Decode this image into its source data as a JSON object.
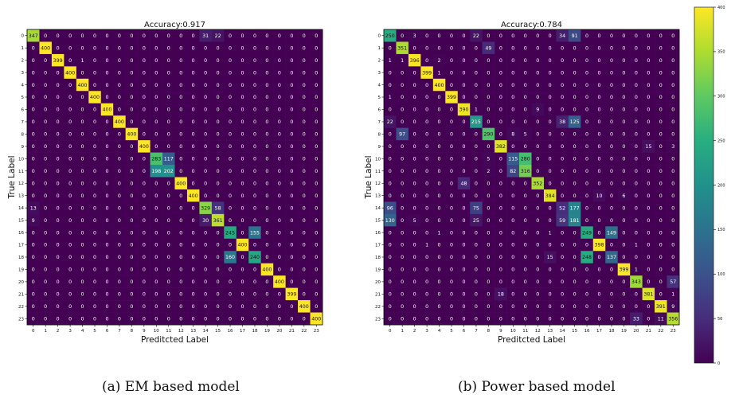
{
  "chart_data": [
    {
      "type": "heatmap",
      "title": "Accuracy:0.917",
      "xlabel": "Preditcted Label",
      "ylabel": "True Label",
      "x": [
        "0",
        "1",
        "2",
        "3",
        "4",
        "5",
        "6",
        "7",
        "8",
        "9",
        "10",
        "11",
        "12",
        "13",
        "14",
        "15",
        "16",
        "17",
        "18",
        "19",
        "20",
        "21",
        "22",
        "23"
      ],
      "y": [
        "0",
        "1",
        "2",
        "3",
        "4",
        "5",
        "6",
        "7",
        "8",
        "9",
        "10",
        "11",
        "12",
        "13",
        "14",
        "15",
        "16",
        "17",
        "18",
        "19",
        "20",
        "21",
        "22",
        "23"
      ],
      "values": [
        [
          347,
          0,
          0,
          0,
          0,
          0,
          0,
          0,
          0,
          0,
          0,
          0,
          0,
          0,
          31,
          22,
          0,
          0,
          0,
          0,
          0,
          0,
          0,
          0
        ],
        [
          0,
          400,
          0,
          0,
          0,
          0,
          0,
          0,
          0,
          0,
          0,
          0,
          0,
          0,
          0,
          0,
          0,
          0,
          0,
          0,
          0,
          0,
          0,
          0
        ],
        [
          0,
          0,
          399,
          0,
          1,
          0,
          0,
          0,
          0,
          0,
          0,
          0,
          0,
          0,
          0,
          0,
          0,
          0,
          0,
          0,
          0,
          0,
          0,
          0
        ],
        [
          0,
          0,
          0,
          400,
          0,
          0,
          0,
          0,
          0,
          0,
          0,
          0,
          0,
          0,
          0,
          0,
          0,
          0,
          0,
          0,
          0,
          0,
          0,
          0
        ],
        [
          0,
          0,
          0,
          0,
          400,
          0,
          0,
          0,
          0,
          0,
          0,
          0,
          0,
          0,
          0,
          0,
          0,
          0,
          0,
          0,
          0,
          0,
          0,
          0
        ],
        [
          0,
          0,
          0,
          0,
          0,
          400,
          0,
          0,
          0,
          0,
          0,
          0,
          0,
          0,
          0,
          0,
          0,
          0,
          0,
          0,
          0,
          0,
          0,
          0
        ],
        [
          0,
          0,
          0,
          0,
          0,
          0,
          400,
          0,
          0,
          0,
          0,
          0,
          0,
          0,
          0,
          0,
          0,
          0,
          0,
          0,
          0,
          0,
          0,
          0
        ],
        [
          0,
          0,
          0,
          0,
          0,
          0,
          0,
          400,
          0,
          0,
          0,
          0,
          0,
          0,
          0,
          0,
          0,
          0,
          0,
          0,
          0,
          0,
          0,
          0
        ],
        [
          0,
          0,
          0,
          0,
          0,
          0,
          0,
          0,
          400,
          0,
          0,
          0,
          0,
          0,
          0,
          0,
          0,
          0,
          0,
          0,
          0,
          0,
          0,
          0
        ],
        [
          0,
          0,
          0,
          0,
          0,
          0,
          0,
          0,
          0,
          400,
          0,
          0,
          0,
          0,
          0,
          0,
          0,
          0,
          0,
          0,
          0,
          0,
          0,
          0
        ],
        [
          0,
          0,
          0,
          0,
          0,
          0,
          0,
          0,
          0,
          0,
          283,
          117,
          0,
          0,
          0,
          0,
          0,
          0,
          0,
          0,
          0,
          0,
          0,
          0
        ],
        [
          0,
          0,
          0,
          0,
          0,
          0,
          0,
          0,
          0,
          0,
          198,
          202,
          0,
          0,
          0,
          0,
          0,
          0,
          0,
          0,
          0,
          0,
          0,
          0
        ],
        [
          0,
          0,
          0,
          0,
          0,
          0,
          0,
          0,
          0,
          0,
          0,
          0,
          400,
          0,
          0,
          0,
          0,
          0,
          0,
          0,
          0,
          0,
          0,
          0
        ],
        [
          0,
          0,
          0,
          0,
          0,
          0,
          0,
          0,
          0,
          0,
          0,
          0,
          0,
          400,
          0,
          0,
          0,
          0,
          0,
          0,
          0,
          0,
          0,
          0
        ],
        [
          13,
          0,
          0,
          0,
          0,
          0,
          0,
          0,
          0,
          0,
          0,
          0,
          0,
          0,
          329,
          58,
          0,
          0,
          0,
          0,
          0,
          0,
          0,
          0
        ],
        [
          9,
          0,
          0,
          0,
          0,
          0,
          0,
          0,
          0,
          0,
          0,
          0,
          0,
          0,
          30,
          361,
          0,
          0,
          0,
          0,
          0,
          0,
          0,
          0
        ],
        [
          0,
          0,
          0,
          0,
          0,
          0,
          0,
          0,
          0,
          0,
          0,
          0,
          0,
          0,
          0,
          0,
          245,
          0,
          155,
          0,
          0,
          0,
          0,
          0
        ],
        [
          0,
          0,
          0,
          0,
          0,
          0,
          0,
          0,
          0,
          0,
          0,
          0,
          0,
          0,
          0,
          0,
          0,
          400,
          0,
          0,
          0,
          0,
          0,
          0
        ],
        [
          0,
          0,
          0,
          0,
          0,
          0,
          0,
          0,
          0,
          0,
          0,
          0,
          0,
          0,
          0,
          0,
          160,
          0,
          240,
          0,
          0,
          0,
          0,
          0
        ],
        [
          0,
          0,
          0,
          0,
          0,
          0,
          0,
          0,
          0,
          0,
          0,
          0,
          0,
          0,
          0,
          0,
          0,
          0,
          0,
          400,
          0,
          0,
          0,
          0
        ],
        [
          0,
          0,
          0,
          0,
          0,
          0,
          0,
          0,
          0,
          0,
          0,
          0,
          0,
          0,
          0,
          0,
          0,
          0,
          0,
          0,
          400,
          0,
          0,
          0
        ],
        [
          0,
          0,
          0,
          0,
          0,
          0,
          0,
          0,
          0,
          0,
          0,
          0,
          0,
          0,
          0,
          0,
          0,
          0,
          0,
          0,
          0,
          399,
          0,
          0
        ],
        [
          0,
          0,
          0,
          0,
          0,
          0,
          0,
          0,
          0,
          0,
          0,
          0,
          0,
          0,
          0,
          0,
          0,
          0,
          0,
          0,
          0,
          0,
          400,
          0
        ],
        [
          0,
          0,
          0,
          0,
          0,
          0,
          0,
          0,
          0,
          0,
          0,
          0,
          0,
          0,
          0,
          0,
          0,
          0,
          0,
          0,
          0,
          0,
          0,
          400
        ]
      ]
    },
    {
      "type": "heatmap",
      "title": "Accuracy:0.784",
      "xlabel": "Preditcted Label",
      "ylabel": "True Label",
      "x": [
        "0",
        "1",
        "2",
        "3",
        "4",
        "5",
        "6",
        "7",
        "8",
        "9",
        "10",
        "11",
        "12",
        "13",
        "14",
        "15",
        "16",
        "17",
        "18",
        "19",
        "20",
        "21",
        "22",
        "23"
      ],
      "y": [
        "0",
        "1",
        "2",
        "3",
        "4",
        "5",
        "6",
        "7",
        "8",
        "9",
        "10",
        "11",
        "12",
        "13",
        "14",
        "15",
        "16",
        "17",
        "18",
        "19",
        "20",
        "21",
        "22",
        "23"
      ],
      "values": [
        [
          250,
          0,
          3,
          0,
          0,
          0,
          0,
          22,
          0,
          0,
          0,
          0,
          0,
          0,
          34,
          91,
          0,
          0,
          0,
          0,
          0,
          0,
          0,
          0
        ],
        [
          0,
          351,
          0,
          0,
          0,
          0,
          0,
          0,
          49,
          0,
          0,
          0,
          0,
          0,
          0,
          0,
          0,
          0,
          0,
          0,
          0,
          0,
          0,
          0
        ],
        [
          1,
          1,
          396,
          0,
          2,
          0,
          0,
          0,
          0,
          0,
          0,
          0,
          0,
          0,
          0,
          0,
          0,
          0,
          0,
          0,
          0,
          0,
          0,
          0
        ],
        [
          0,
          0,
          0,
          399,
          1,
          0,
          0,
          0,
          0,
          0,
          0,
          0,
          0,
          0,
          0,
          0,
          0,
          0,
          0,
          0,
          0,
          0,
          0,
          0
        ],
        [
          0,
          0,
          0,
          0,
          400,
          0,
          0,
          0,
          0,
          0,
          0,
          0,
          0,
          0,
          0,
          0,
          0,
          0,
          0,
          0,
          0,
          0,
          0,
          0
        ],
        [
          1,
          0,
          0,
          0,
          0,
          399,
          0,
          0,
          0,
          0,
          0,
          0,
          0,
          0,
          0,
          0,
          0,
          0,
          0,
          0,
          0,
          0,
          0,
          0
        ],
        [
          0,
          0,
          0,
          0,
          0,
          0,
          390,
          1,
          0,
          0,
          0,
          0,
          9,
          0,
          0,
          0,
          0,
          0,
          0,
          0,
          0,
          0,
          0,
          0
        ],
        [
          22,
          0,
          0,
          0,
          0,
          0,
          0,
          215,
          0,
          0,
          0,
          0,
          0,
          0,
          38,
          125,
          0,
          0,
          0,
          0,
          0,
          0,
          0,
          0
        ],
        [
          0,
          97,
          0,
          0,
          0,
          0,
          0,
          0,
          290,
          0,
          8,
          5,
          0,
          0,
          0,
          0,
          0,
          0,
          0,
          0,
          0,
          0,
          0,
          0
        ],
        [
          0,
          0,
          0,
          0,
          0,
          0,
          0,
          0,
          0,
          382,
          0,
          0,
          0,
          0,
          0,
          0,
          0,
          0,
          0,
          0,
          0,
          15,
          0,
          3
        ],
        [
          0,
          0,
          0,
          0,
          0,
          0,
          0,
          0,
          5,
          0,
          115,
          280,
          0,
          0,
          0,
          0,
          0,
          0,
          0,
          0,
          0,
          0,
          0,
          0
        ],
        [
          0,
          0,
          0,
          0,
          0,
          0,
          0,
          0,
          2,
          0,
          82,
          316,
          0,
          0,
          0,
          0,
          0,
          0,
          0,
          0,
          0,
          0,
          0,
          0
        ],
        [
          0,
          0,
          0,
          0,
          0,
          0,
          48,
          0,
          0,
          0,
          0,
          0,
          352,
          0,
          0,
          0,
          0,
          0,
          0,
          0,
          0,
          0,
          0,
          0
        ],
        [
          0,
          0,
          0,
          0,
          0,
          0,
          0,
          0,
          0,
          0,
          0,
          0,
          0,
          384,
          0,
          0,
          0,
          10,
          0,
          6,
          0,
          0,
          0,
          0
        ],
        [
          96,
          0,
          0,
          0,
          0,
          0,
          0,
          75,
          0,
          0,
          0,
          0,
          0,
          0,
          52,
          177,
          0,
          0,
          0,
          0,
          0,
          0,
          0,
          0
        ],
        [
          130,
          0,
          5,
          0,
          0,
          0,
          0,
          25,
          0,
          0,
          0,
          0,
          0,
          0,
          59,
          181,
          0,
          0,
          0,
          0,
          0,
          0,
          0,
          0
        ],
        [
          0,
          0,
          0,
          0,
          1,
          0,
          0,
          0,
          0,
          0,
          0,
          0,
          0,
          1,
          0,
          0,
          249,
          0,
          149,
          0,
          0,
          0,
          0,
          0
        ],
        [
          0,
          0,
          0,
          1,
          0,
          0,
          0,
          0,
          0,
          0,
          0,
          0,
          0,
          0,
          0,
          0,
          0,
          398,
          0,
          0,
          1,
          0,
          0,
          0
        ],
        [
          0,
          0,
          0,
          0,
          0,
          0,
          0,
          0,
          0,
          0,
          0,
          0,
          0,
          15,
          0,
          0,
          248,
          0,
          137,
          0,
          0,
          0,
          0,
          0
        ],
        [
          0,
          0,
          0,
          0,
          0,
          0,
          0,
          0,
          0,
          0,
          0,
          0,
          0,
          0,
          0,
          0,
          0,
          0,
          0,
          399,
          1,
          0,
          0,
          0
        ],
        [
          0,
          0,
          0,
          0,
          0,
          0,
          0,
          0,
          0,
          0,
          0,
          0,
          0,
          0,
          0,
          0,
          0,
          0,
          0,
          0,
          343,
          0,
          0,
          57
        ],
        [
          0,
          0,
          0,
          0,
          0,
          0,
          0,
          0,
          0,
          18,
          0,
          0,
          0,
          0,
          0,
          0,
          0,
          0,
          0,
          0,
          0,
          381,
          0,
          1
        ],
        [
          0,
          0,
          0,
          0,
          0,
          0,
          0,
          0,
          0,
          0,
          0,
          0,
          0,
          0,
          0,
          0,
          0,
          0,
          0,
          0,
          0,
          0,
          391,
          9
        ],
        [
          0,
          0,
          0,
          0,
          0,
          0,
          0,
          0,
          0,
          0,
          0,
          0,
          0,
          0,
          0,
          0,
          0,
          0,
          0,
          0,
          33,
          0,
          11,
          356
        ]
      ]
    }
  ],
  "colorbar": {
    "colormap": "viridis",
    "vmin": 0,
    "vmax": 400,
    "ticks": [
      0,
      50,
      100,
      150,
      200,
      250,
      300,
      350,
      400
    ]
  },
  "captions": {
    "a": "(a) EM based model",
    "b": "(b) Power based model"
  }
}
